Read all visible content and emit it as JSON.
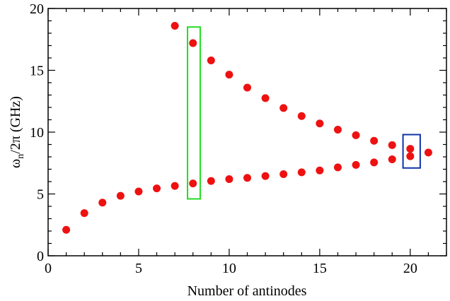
{
  "chart_data": {
    "type": "scatter",
    "title": "",
    "xlabel": "Number of antinodes",
    "ylabel_main": "ω",
    "ylabel_sub": "n",
    "ylabel_rest": "/2π (GHz)",
    "xlim": [
      0,
      22
    ],
    "ylim": [
      0,
      20
    ],
    "x_ticks": [
      0,
      5,
      10,
      15,
      20
    ],
    "y_ticks": [
      0,
      5,
      10,
      15,
      20
    ],
    "grid": false,
    "marker_color": "#ee1111",
    "series": [
      {
        "x": [
          1,
          2,
          3,
          4,
          5,
          6,
          7,
          8,
          9,
          10,
          11,
          12,
          13,
          14,
          15,
          16,
          17,
          18,
          19,
          20,
          20,
          21
        ],
        "y": [
          2.1,
          3.45,
          4.3,
          4.85,
          5.2,
          5.45,
          5.65,
          5.85,
          6.05,
          6.2,
          6.3,
          6.45,
          6.6,
          6.75,
          6.9,
          7.15,
          7.35,
          7.55,
          7.8,
          8.05,
          8.65,
          8.35
        ]
      },
      {
        "x": [
          7,
          8,
          9,
          10,
          11,
          12,
          13,
          14,
          15,
          16,
          17,
          18,
          19
        ],
        "y": [
          18.6,
          17.2,
          15.8,
          14.65,
          13.6,
          12.75,
          11.95,
          11.3,
          10.7,
          10.2,
          9.75,
          9.3,
          8.95
        ]
      }
    ],
    "highlights": [
      {
        "color": "#22dd22",
        "x0": 7.7,
        "x1": 8.4,
        "y0": 4.6,
        "y1": 18.5
      },
      {
        "color": "#1133aa",
        "x0": 19.6,
        "x1": 20.55,
        "y0": 7.1,
        "y1": 9.8
      }
    ]
  }
}
